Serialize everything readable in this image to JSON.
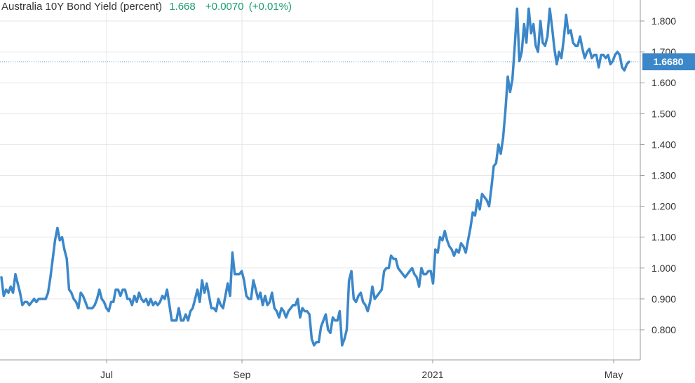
{
  "header": {
    "title": "Australia 10Y Bond Yield (percent)",
    "last": "1.668",
    "change": "+0.0070",
    "change_pct": "(+0.01%)"
  },
  "current_badge": "1.6680",
  "colors": {
    "line": "#3b87c9",
    "badge": "#3b87c9",
    "positive": "#1a9b73",
    "grid": "#e6e6e6",
    "axis_text": "#333333"
  },
  "chart_data": {
    "type": "line",
    "title": "Australia 10Y Bond Yield (percent)",
    "xlabel": "",
    "ylabel": "",
    "x_tick_labels": [
      "Jul",
      "Sep",
      "2021",
      "May"
    ],
    "y_ticks": [
      0.8,
      0.9,
      1.0,
      1.1,
      1.2,
      1.3,
      1.4,
      1.5,
      1.6,
      1.7,
      1.8
    ],
    "y_tick_labels": [
      "0.800",
      "0.900",
      "1.000",
      "1.100",
      "1.200",
      "1.300",
      "1.400",
      "1.500",
      "1.600",
      "1.700",
      "1.800"
    ],
    "ylim": [
      0.71,
      1.87
    ],
    "grid": true,
    "last_value": 1.668,
    "series": [
      {
        "values": [
          0.97,
          0.91,
          0.93,
          0.92,
          0.94,
          0.92,
          0.98,
          0.95,
          0.92,
          0.88,
          0.89,
          0.89,
          0.88,
          0.89,
          0.9,
          0.89,
          0.9,
          0.9,
          0.9,
          0.9,
          0.92,
          0.97,
          1.03,
          1.09,
          1.13,
          1.09,
          1.1,
          1.06,
          1.03,
          0.93,
          0.92,
          0.9,
          0.89,
          0.87,
          0.92,
          0.91,
          0.89,
          0.87,
          0.87,
          0.87,
          0.88,
          0.9,
          0.93,
          0.9,
          0.89,
          0.87,
          0.86,
          0.89,
          0.89,
          0.93,
          0.93,
          0.91,
          0.93,
          0.93,
          0.9,
          0.9,
          0.88,
          0.91,
          0.89,
          0.92,
          0.9,
          0.89,
          0.9,
          0.88,
          0.9,
          0.88,
          0.89,
          0.88,
          0.89,
          0.91,
          0.9,
          0.93,
          0.88,
          0.83,
          0.83,
          0.83,
          0.87,
          0.83,
          0.83,
          0.85,
          0.83,
          0.86,
          0.87,
          0.9,
          0.93,
          0.89,
          0.96,
          0.92,
          0.95,
          0.91,
          0.87,
          0.87,
          0.86,
          0.9,
          0.88,
          0.87,
          0.91,
          0.95,
          0.91,
          1.05,
          0.98,
          0.98,
          0.98,
          0.99,
          0.96,
          0.91,
          0.9,
          0.9,
          0.96,
          0.93,
          0.9,
          0.92,
          0.88,
          0.91,
          0.88,
          0.89,
          0.92,
          0.87,
          0.86,
          0.84,
          0.87,
          0.86,
          0.84,
          0.86,
          0.87,
          0.88,
          0.88,
          0.9,
          0.84,
          0.87,
          0.86,
          0.86,
          0.85,
          0.77,
          0.75,
          0.76,
          0.76,
          0.81,
          0.83,
          0.85,
          0.8,
          0.79,
          0.84,
          0.83,
          0.83,
          0.86,
          0.75,
          0.77,
          0.8,
          0.96,
          0.99,
          0.9,
          0.89,
          0.91,
          0.92,
          0.89,
          0.88,
          0.86,
          0.89,
          0.94,
          0.9,
          0.91,
          0.92,
          0.93,
          0.99,
          1.0,
          1.0,
          1.04,
          1.03,
          1.03,
          1.0,
          0.99,
          0.98,
          0.97,
          0.98,
          0.99,
          1.0,
          0.98,
          0.97,
          0.94,
          1.0,
          0.98,
          0.98,
          0.99,
          0.99,
          0.95,
          1.06,
          1.05,
          1.1,
          1.09,
          1.12,
          1.09,
          1.07,
          1.06,
          1.04,
          1.06,
          1.05,
          1.08,
          1.07,
          1.05,
          1.09,
          1.13,
          1.18,
          1.17,
          1.22,
          1.19,
          1.24,
          1.23,
          1.22,
          1.2,
          1.26,
          1.33,
          1.34,
          1.4,
          1.37,
          1.42,
          1.51,
          1.62,
          1.57,
          1.61,
          1.72,
          1.84,
          1.67,
          1.7,
          1.79,
          1.73,
          1.84,
          1.76,
          1.79,
          1.72,
          1.7,
          1.8,
          1.73,
          1.72,
          1.75,
          1.84,
          1.78,
          1.71,
          1.66,
          1.7,
          1.68,
          1.74,
          1.82,
          1.76,
          1.77,
          1.73,
          1.72,
          1.72,
          1.75,
          1.71,
          1.68,
          1.7,
          1.71,
          1.68,
          1.69,
          1.69,
          1.65,
          1.69,
          1.69,
          1.68,
          1.69,
          1.66,
          1.67,
          1.69,
          1.7,
          1.69,
          1.65,
          1.64,
          1.66,
          1.668
        ]
      }
    ]
  }
}
